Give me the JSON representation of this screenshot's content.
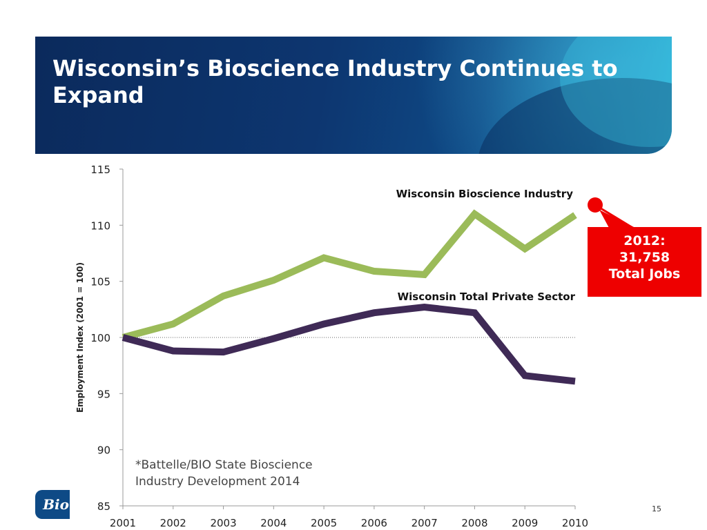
{
  "slide": {
    "title": "Wisconsin’s Bioscience Industry Continues to Expand",
    "page_number": "15",
    "logo_text": "Bio"
  },
  "callout": {
    "lines": [
      "2012:",
      "31,758",
      "Total Jobs"
    ],
    "color": "#ee0000"
  },
  "source_note": {
    "lines": [
      "*Battelle/BIO State Bioscience",
      "Industry Development 2014"
    ]
  },
  "chart_data": {
    "type": "line",
    "title": "",
    "xlabel": "",
    "ylabel": "Employment Index (2001 = 100)",
    "x": [
      2001,
      2002,
      2003,
      2004,
      2005,
      2006,
      2007,
      2008,
      2009,
      2010
    ],
    "ylim": [
      85,
      115
    ],
    "yticks": [
      85,
      90,
      95,
      100,
      105,
      110,
      115
    ],
    "reference_line": 100,
    "series": [
      {
        "name": "Wisconsin Bioscience Industry",
        "color": "#9bbb59",
        "values": [
          100,
          101.2,
          103.7,
          105.1,
          107.1,
          105.9,
          105.6,
          111.0,
          107.9,
          110.9
        ]
      },
      {
        "name": "Wisconsin Total Private Sector",
        "color": "#3f2a56",
        "values": [
          100,
          98.8,
          98.7,
          99.9,
          101.2,
          102.2,
          102.7,
          102.2,
          96.6,
          96.1
        ]
      }
    ]
  }
}
